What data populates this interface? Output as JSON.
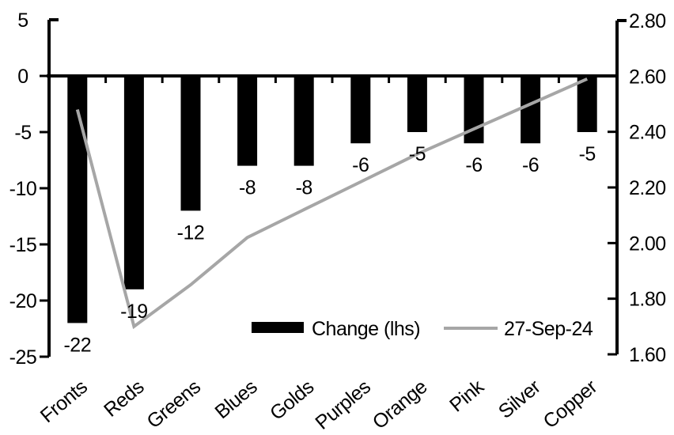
{
  "chart_data": {
    "type": "bar+line",
    "categories": [
      "Fronts",
      "Reds",
      "Greens",
      "Blues",
      "Golds",
      "Purples",
      "Orange",
      "Pink",
      "Silver",
      "Copper"
    ],
    "series": [
      {
        "name": "Change (lhs)",
        "type": "bar",
        "axis": "left",
        "color": "#000000",
        "values": [
          -22,
          -19,
          -12,
          -8,
          -8,
          -6,
          -5,
          -6,
          -6,
          -5
        ],
        "data_labels": [
          "-22",
          "-19",
          "-12",
          "-8",
          "-8",
          "-6",
          "-5",
          "-6",
          "-6",
          "-5"
        ]
      },
      {
        "name": "27-Sep-24",
        "type": "line",
        "axis": "right",
        "color": "#a6a6a6",
        "values": [
          2.48,
          1.7,
          1.85,
          2.02,
          2.12,
          2.22,
          2.32,
          2.41,
          2.5,
          2.59
        ]
      }
    ],
    "left_axis": {
      "min": -25,
      "max": 5,
      "ticks": [
        5,
        0,
        -5,
        -10,
        -15,
        -20,
        -25
      ],
      "tick_labels": [
        "5",
        "0",
        "-5",
        "-10",
        "-15",
        "-20",
        "-25"
      ]
    },
    "right_axis": {
      "min": 1.6,
      "max": 2.8,
      "ticks": [
        2.8,
        2.6,
        2.4,
        2.2,
        2.0,
        1.8,
        1.6
      ],
      "tick_labels": [
        "2.80",
        "2.60",
        "2.40",
        "2.20",
        "2.00",
        "1.80",
        "1.60"
      ]
    },
    "legend": {
      "position": "inside-bottom",
      "entries": [
        {
          "label": "Change (lhs)",
          "swatch": "bar",
          "color": "#000000"
        },
        {
          "label": "27-Sep-24",
          "swatch": "line",
          "color": "#a6a6a6"
        }
      ]
    },
    "grid": false,
    "background": "#ffffff",
    "axis_color": "#000000",
    "title": ""
  }
}
